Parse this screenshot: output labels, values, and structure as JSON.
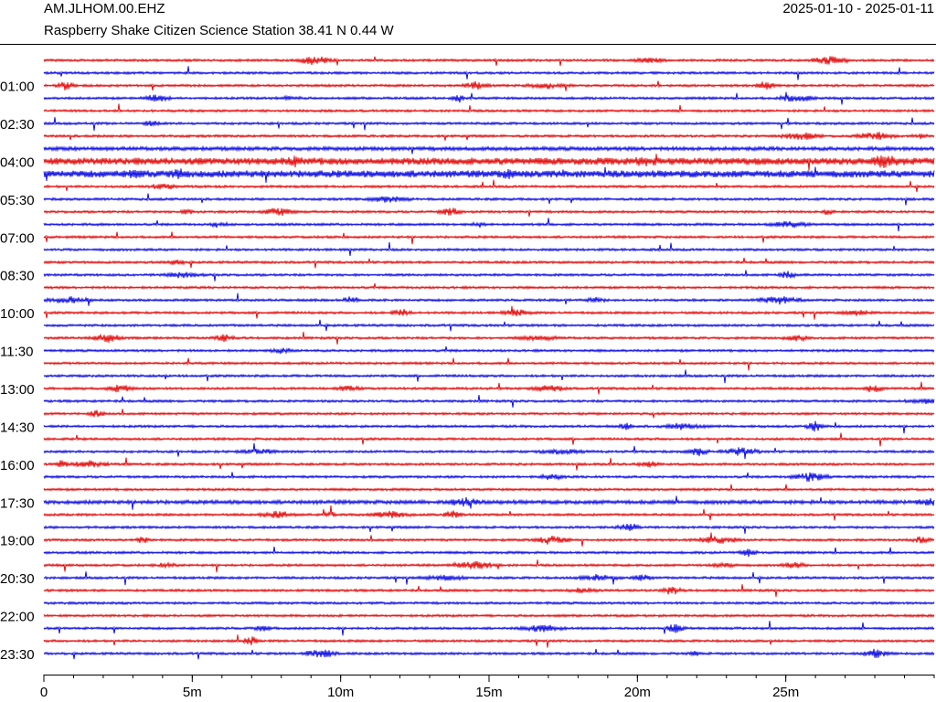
{
  "chart_data": {
    "type": "helicorder",
    "title": "AM.JLHOM.00.EHZ",
    "subtitle": "Raspberry Shake Citizen Science Station  38.41 N 0.44 W",
    "date_range": "2025-01-10 - 2025-01-11",
    "categories": [
      null,
      null,
      "01:00",
      null,
      null,
      "02:30",
      null,
      null,
      "04:00",
      null,
      null,
      "05:30",
      null,
      null,
      "07:00",
      null,
      null,
      "08:30",
      null,
      null,
      "10:00",
      null,
      null,
      "11:30",
      null,
      null,
      "13:00",
      null,
      null,
      "14:30",
      null,
      null,
      "16:00",
      null,
      null,
      "17:30",
      null,
      null,
      "19:00",
      null,
      null,
      "20:30",
      null,
      null,
      "22:00",
      null,
      null,
      "23:30"
    ],
    "colors": [
      "#e00000",
      "#0000e0"
    ],
    "xlim": [
      0,
      30
    ],
    "xticks": [
      0,
      {
        "value": 5,
        "label": "5m"
      },
      {
        "value": 10,
        "label": "10m"
      },
      {
        "value": 15,
        "label": "15m"
      },
      {
        "value": 20,
        "label": "20m"
      },
      {
        "value": 25,
        "label": "25m"
      }
    ],
    "xminor_ticks": [
      0,
      1,
      2,
      3,
      4,
      5,
      6,
      7,
      8,
      9,
      10,
      11,
      12,
      13,
      14,
      15,
      16,
      17,
      18,
      19,
      20,
      21,
      22,
      23,
      24,
      25,
      26,
      27,
      28,
      29,
      30
    ]
  }
}
